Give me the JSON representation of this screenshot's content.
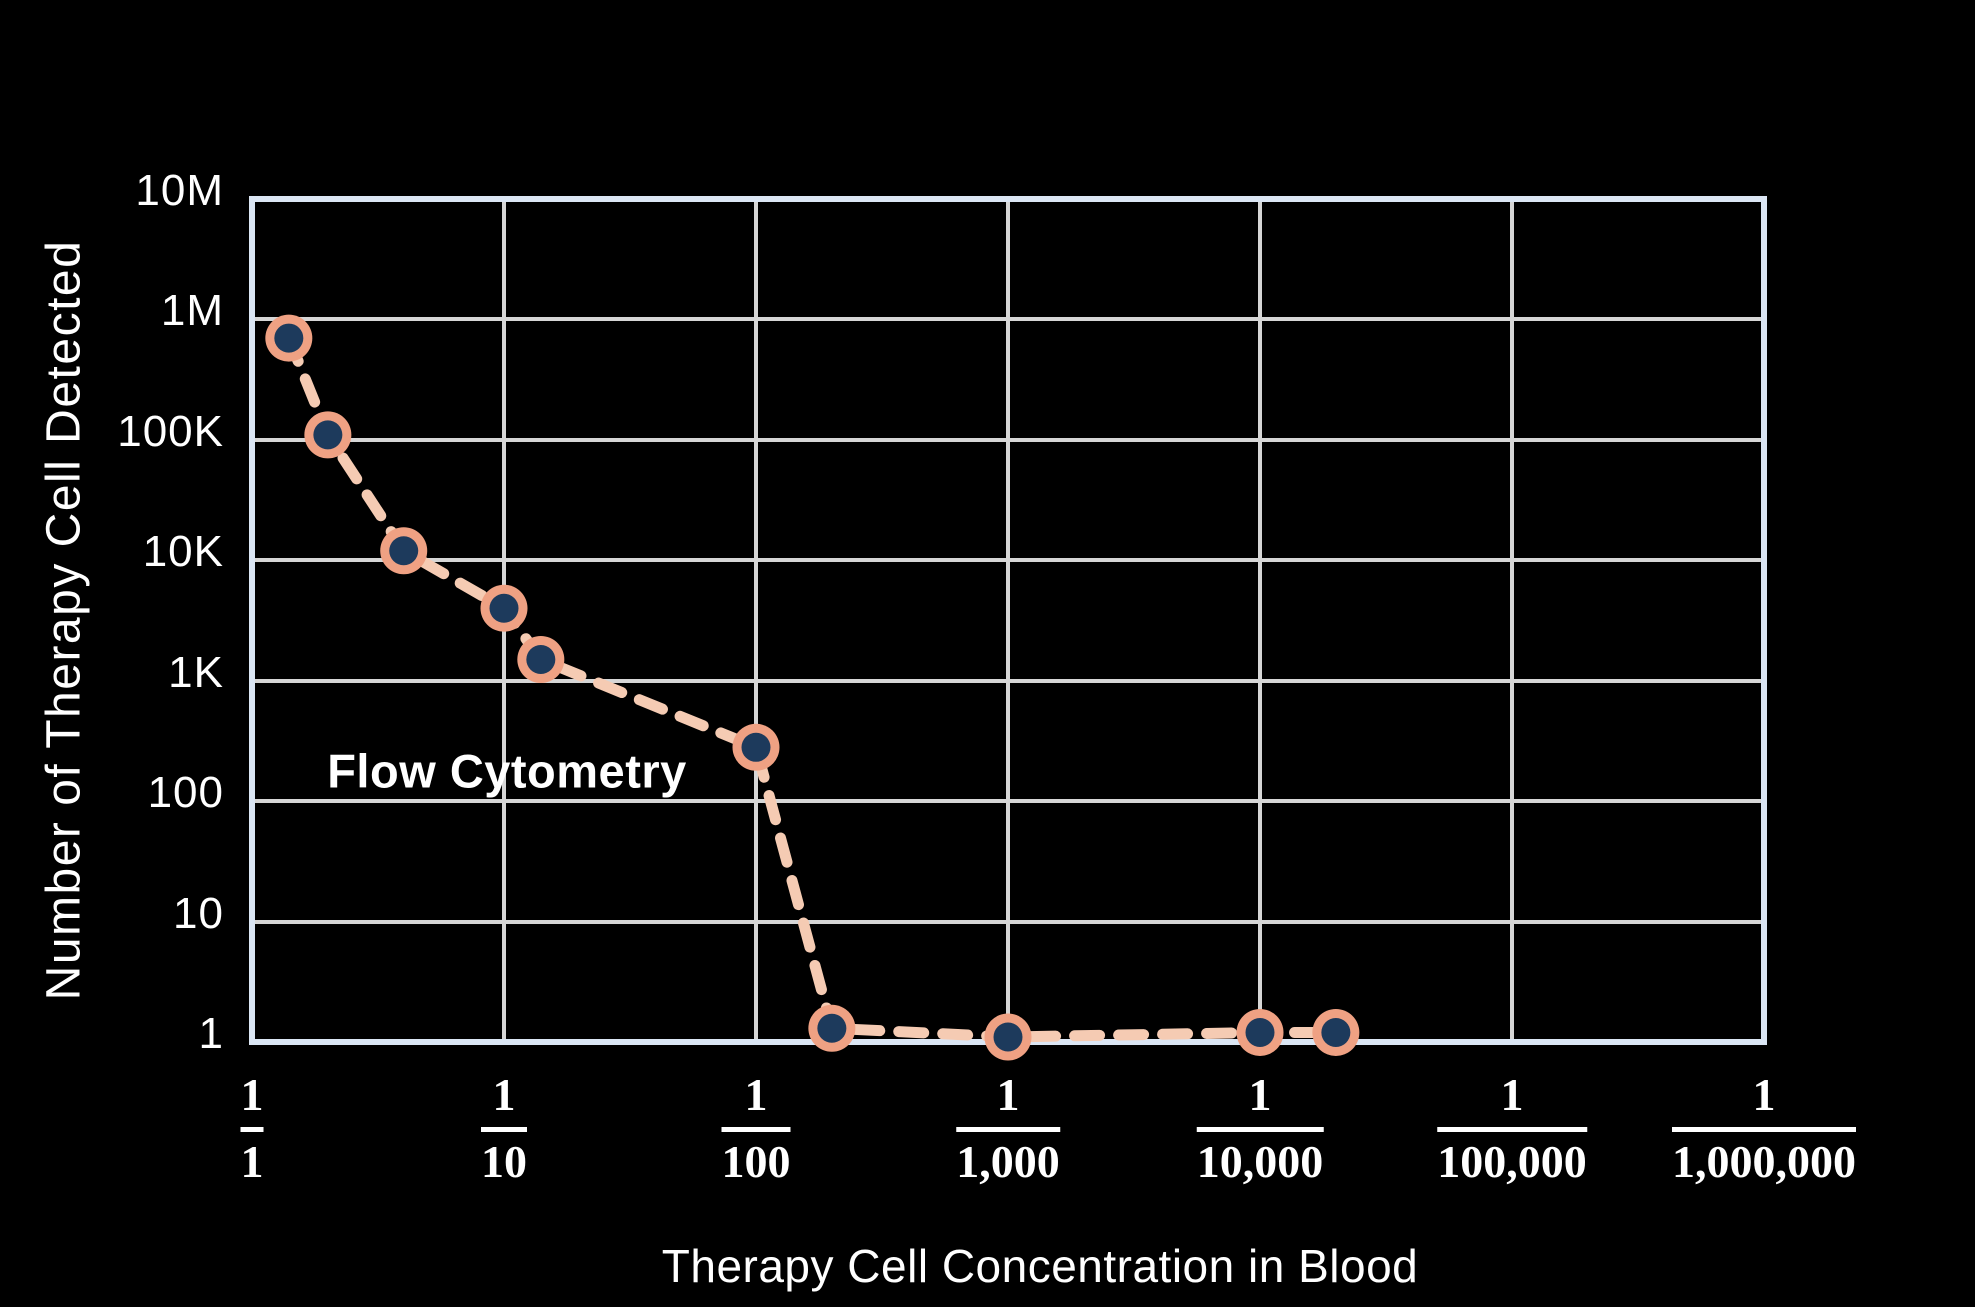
{
  "chart_data": {
    "type": "scatter",
    "series_label": "Flow Cytometry",
    "xlabel": "Therapy Cell Concentration in Blood",
    "ylabel": "Number of Therapy Cell Detected",
    "x_scale": "log reciprocal concentration, 1/1 to 1/1,000,000",
    "y_scale": "log count, 1 to 10,000,000 (shown as 10M down to 1)",
    "grid": true,
    "legend_position": "in-plot text label",
    "x_ticks": [
      {
        "num": "1",
        "den": "1",
        "value": 1
      },
      {
        "num": "1",
        "den": "10",
        "value": 10
      },
      {
        "num": "1",
        "den": "100",
        "value": 100
      },
      {
        "num": "1",
        "den": "1,000",
        "value": 1000
      },
      {
        "num": "1",
        "den": "10,000",
        "value": 10000
      },
      {
        "num": "1",
        "den": "100,000",
        "value": 100000
      },
      {
        "num": "1",
        "den": "1,000,000",
        "value": 1000000
      }
    ],
    "y_ticks": [
      {
        "label": "10M",
        "value": 10000000
      },
      {
        "label": "1M",
        "value": 1000000
      },
      {
        "label": "100K",
        "value": 100000
      },
      {
        "label": "10K",
        "value": 10000
      },
      {
        "label": "1K",
        "value": 1000
      },
      {
        "label": "100",
        "value": 100
      },
      {
        "label": "10",
        "value": 10
      },
      {
        "label": "1",
        "value": 1
      }
    ],
    "points": [
      {
        "concentration": "1/1.4",
        "concentration_denominator": 1.4,
        "detected": 700000
      },
      {
        "concentration": "1/2",
        "concentration_denominator": 2,
        "detected": 110000
      },
      {
        "concentration": "1/4",
        "concentration_denominator": 4,
        "detected": 12000
      },
      {
        "concentration": "1/10",
        "concentration_denominator": 10,
        "detected": 4000
      },
      {
        "concentration": "1/14",
        "concentration_denominator": 14,
        "detected": 1500
      },
      {
        "concentration": "1/100",
        "concentration_denominator": 100,
        "detected": 280
      },
      {
        "concentration": "1/200",
        "concentration_denominator": 200,
        "detected": 1.3
      },
      {
        "concentration": "1/1,000",
        "concentration_denominator": 1000,
        "detected": 1.1
      },
      {
        "concentration": "1/10,000",
        "concentration_denominator": 10000,
        "detected": 1.2
      },
      {
        "concentration": "1/20,000",
        "concentration_denominator": 20000,
        "detected": 1.2
      }
    ],
    "colors": {
      "background": "#000000",
      "plot_border": "#DBE6F4",
      "gridline": "#D6D6D6",
      "marker_ring": "#EFA183",
      "marker_center": "#1D3A5C",
      "dash_line": "#F5CBB3",
      "text": "#FFFFFF"
    }
  }
}
